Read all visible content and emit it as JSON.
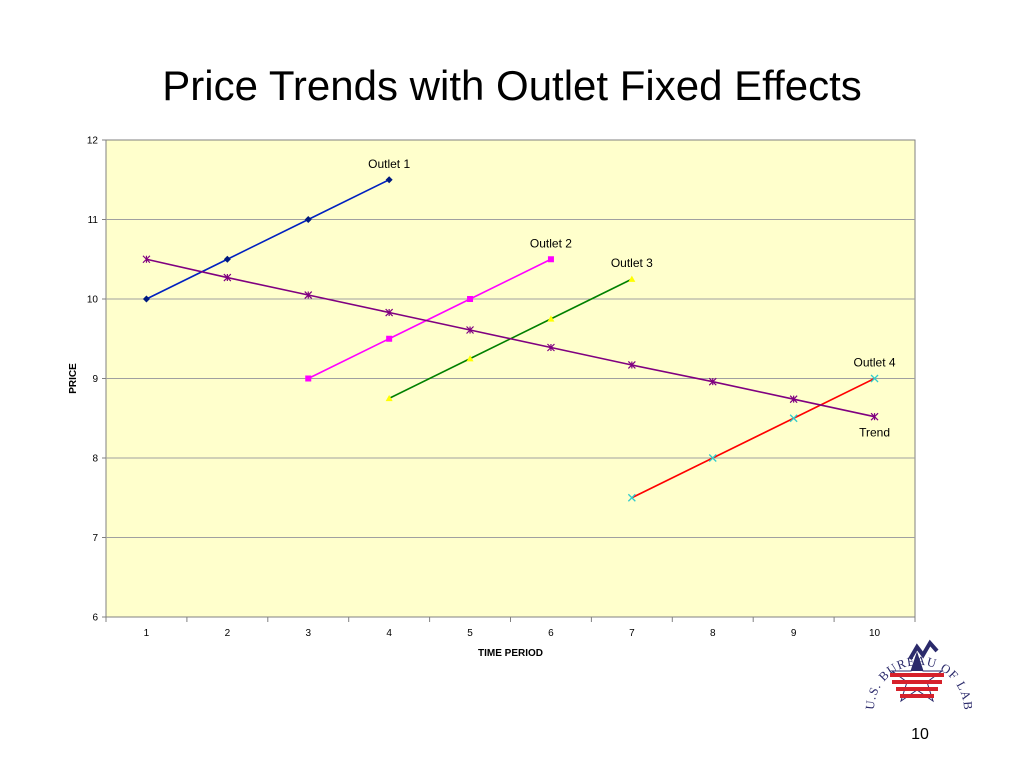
{
  "slide": {
    "title": "Price Trends with Outlet Fixed Effects",
    "page_number": "10"
  },
  "logo": {
    "text": "U.S. BUREAU OF LABOR STATISTICS",
    "colors": {
      "red": "#d6212b",
      "navy": "#2b2a6b"
    }
  },
  "chart_data": {
    "type": "line",
    "title": "",
    "xlabel": "TIME PERIOD",
    "ylabel": "PRICE",
    "x_categories": [
      "1",
      "2",
      "3",
      "4",
      "5",
      "6",
      "7",
      "8",
      "9",
      "10"
    ],
    "ylim": [
      6,
      12
    ],
    "yticks": [
      6,
      7,
      8,
      9,
      10,
      11,
      12
    ],
    "grid": "horizontal",
    "plot_background": "#ffffcc",
    "series": [
      {
        "name": "Outlet 1",
        "color": "#0020c0",
        "marker": "diamond",
        "marker_color": "#001a80",
        "points": [
          [
            1,
            10
          ],
          [
            2,
            10.5
          ],
          [
            3,
            11
          ],
          [
            4,
            11.5
          ]
        ],
        "label_at": [
          4,
          11.5
        ]
      },
      {
        "name": "Outlet 2",
        "color": "#ff00ff",
        "marker": "square",
        "marker_color": "#ff00ff",
        "points": [
          [
            3,
            9
          ],
          [
            4,
            9.5
          ],
          [
            5,
            10
          ],
          [
            6,
            10.5
          ]
        ],
        "label_at": [
          6,
          10.5
        ]
      },
      {
        "name": "Outlet 3",
        "color": "#008000",
        "marker": "triangle",
        "marker_color": "#ffff00",
        "points": [
          [
            4,
            8.75
          ],
          [
            5,
            9.25
          ],
          [
            6,
            9.75
          ],
          [
            7,
            10.25
          ]
        ],
        "label_at": [
          7,
          10.25
        ]
      },
      {
        "name": "Outlet 4",
        "color": "#ff0000",
        "marker": "x",
        "marker_color": "#33cccc",
        "points": [
          [
            7,
            7.5
          ],
          [
            8,
            8
          ],
          [
            9,
            8.5
          ],
          [
            10,
            9
          ]
        ],
        "label_at": [
          10,
          9
        ]
      },
      {
        "name": "Trend",
        "color": "#800080",
        "marker": "star",
        "marker_color": "#800080",
        "points": [
          [
            1,
            10.5
          ],
          [
            2,
            10.27
          ],
          [
            3,
            10.05
          ],
          [
            4,
            9.83
          ],
          [
            5,
            9.61
          ],
          [
            6,
            9.39
          ],
          [
            7,
            9.17
          ],
          [
            8,
            8.96
          ],
          [
            9,
            8.74
          ],
          [
            10,
            8.52
          ]
        ],
        "label_at": [
          10,
          8.52
        ]
      }
    ]
  }
}
